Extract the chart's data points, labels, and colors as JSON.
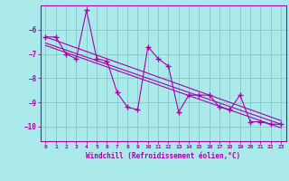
{
  "xlabel": "Windchill (Refroidissement éolien,°C)",
  "ylabel": "",
  "bg_color": "#aaeaea",
  "grid_color": "#88cccc",
  "line_color": "#aa00aa",
  "xlim": [
    -0.5,
    23.5
  ],
  "ylim": [
    -10.6,
    -5.0
  ],
  "yticks": [
    -10,
    -9,
    -8,
    -7,
    -6
  ],
  "xticks": [
    0,
    1,
    2,
    3,
    4,
    5,
    6,
    7,
    8,
    9,
    10,
    11,
    12,
    13,
    14,
    15,
    16,
    17,
    18,
    19,
    20,
    21,
    22,
    23
  ],
  "data_x": [
    0,
    1,
    2,
    3,
    4,
    5,
    6,
    7,
    8,
    9,
    10,
    11,
    12,
    13,
    14,
    15,
    16,
    17,
    18,
    19,
    20,
    21,
    22,
    23
  ],
  "data_y": [
    -6.3,
    -6.3,
    -7.0,
    -7.2,
    -5.2,
    -7.2,
    -7.3,
    -8.6,
    -9.2,
    -9.3,
    -6.7,
    -7.2,
    -7.5,
    -9.4,
    -8.7,
    -8.7,
    -8.7,
    -9.2,
    -9.3,
    -8.7,
    -9.8,
    -9.8,
    -9.9,
    -9.9
  ],
  "trend1_x": [
    0,
    23
  ],
  "trend1_y": [
    -6.3,
    -9.75
  ],
  "trend2_x": [
    0,
    23
  ],
  "trend2_y": [
    -6.55,
    -9.9
  ],
  "trend3_x": [
    0,
    23
  ],
  "trend3_y": [
    -6.65,
    -10.05
  ]
}
